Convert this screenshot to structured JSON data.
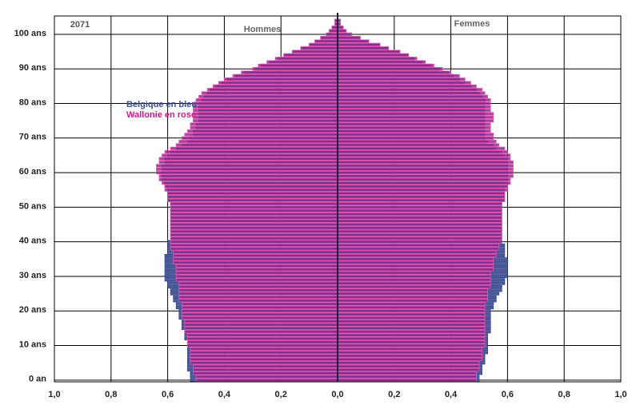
{
  "chart_data": {
    "type": "pyramid",
    "title": "2071",
    "sides": [
      "Hommes",
      "Femmes"
    ],
    "xlim": [
      -1,
      1
    ],
    "xticks": [
      {
        "value": -1,
        "label": "1,0"
      },
      {
        "value": -0.8,
        "label": "0,8"
      },
      {
        "value": -0.6,
        "label": "0,6"
      },
      {
        "value": -0.4,
        "label": "0,4"
      },
      {
        "value": -0.2,
        "label": "0,2"
      },
      {
        "value": 0,
        "label": "0,0"
      },
      {
        "value": 0.2,
        "label": "0,2"
      },
      {
        "value": 0.4,
        "label": "0,4"
      },
      {
        "value": 0.6,
        "label": "0,6"
      },
      {
        "value": 0.8,
        "label": "0,8"
      },
      {
        "value": 1,
        "label": "1,0"
      }
    ],
    "ylim": [
      -0.5,
      105.3
    ],
    "yticks": [
      {
        "value": 0,
        "label": "0 an"
      },
      {
        "value": 10,
        "label": "10 ans"
      },
      {
        "value": 20,
        "label": "20 ans"
      },
      {
        "value": 30,
        "label": "30 ans"
      },
      {
        "value": 40,
        "label": "40 ans"
      },
      {
        "value": 50,
        "label": "50 ans"
      },
      {
        "value": 60,
        "label": "60 ans"
      },
      {
        "value": 70,
        "label": "70 ans"
      },
      {
        "value": 80,
        "label": "80 ans"
      },
      {
        "value": 90,
        "label": "90 ans"
      },
      {
        "value": 100,
        "label": "100 ans"
      }
    ],
    "grid": true,
    "y": [
      0,
      1,
      2,
      3,
      4,
      5,
      6,
      7,
      8,
      9,
      10,
      11,
      12,
      13,
      14,
      15,
      16,
      17,
      18,
      19,
      20,
      21,
      22,
      23,
      24,
      25,
      26,
      27,
      28,
      29,
      30,
      31,
      32,
      33,
      34,
      35,
      36,
      37,
      38,
      39,
      40,
      41,
      42,
      43,
      44,
      45,
      46,
      47,
      48,
      49,
      50,
      51,
      52,
      53,
      54,
      55,
      56,
      57,
      58,
      59,
      60,
      61,
      62,
      63,
      64,
      65,
      66,
      67,
      68,
      69,
      70,
      71,
      72,
      73,
      74,
      75,
      76,
      77,
      78,
      79,
      80,
      81,
      82,
      83,
      84,
      85,
      86,
      87,
      88,
      89,
      90,
      91,
      92,
      93,
      94,
      95,
      96,
      97,
      98,
      99,
      100,
      101,
      102,
      103,
      104
    ],
    "series": [
      {
        "name": "Belgique en bleu",
        "color": "#3b4f96",
        "hommes": [
          -0.52,
          -0.52,
          -0.52,
          -0.53,
          -0.53,
          -0.53,
          -0.53,
          -0.53,
          -0.53,
          -0.53,
          -0.53,
          -0.53,
          -0.54,
          -0.54,
          -0.54,
          -0.55,
          -0.55,
          -0.55,
          -0.56,
          -0.56,
          -0.56,
          -0.57,
          -0.57,
          -0.58,
          -0.58,
          -0.59,
          -0.59,
          -0.6,
          -0.6,
          -0.61,
          -0.61,
          -0.61,
          -0.61,
          -0.61,
          -0.61,
          -0.61,
          -0.61,
          -0.6,
          -0.6,
          -0.6,
          -0.6,
          -0.59,
          -0.59,
          -0.59,
          -0.59,
          -0.59,
          -0.59,
          -0.59,
          -0.59,
          -0.59,
          -0.59,
          -0.59,
          -0.6,
          -0.6,
          -0.6,
          -0.6,
          -0.61,
          -0.61,
          -0.62,
          -0.62,
          -0.62,
          -0.62,
          -0.62,
          -0.61,
          -0.61,
          -0.6,
          -0.59,
          -0.57,
          -0.55,
          -0.53,
          -0.52,
          -0.51,
          -0.51,
          -0.5,
          -0.5,
          -0.49,
          -0.49,
          -0.49,
          -0.49,
          -0.49,
          -0.49,
          -0.48,
          -0.47,
          -0.46,
          -0.45,
          -0.43,
          -0.41,
          -0.39,
          -0.36,
          -0.33,
          -0.29,
          -0.27,
          -0.24,
          -0.21,
          -0.19,
          -0.16,
          -0.13,
          -0.1,
          -0.08,
          -0.06,
          -0.04,
          -0.03,
          -0.02,
          -0.01,
          -0.01
        ],
        "femmes": [
          0.5,
          0.5,
          0.51,
          0.51,
          0.51,
          0.52,
          0.52,
          0.52,
          0.53,
          0.53,
          0.53,
          0.53,
          0.53,
          0.53,
          0.54,
          0.54,
          0.54,
          0.54,
          0.54,
          0.54,
          0.54,
          0.55,
          0.55,
          0.56,
          0.56,
          0.57,
          0.58,
          0.58,
          0.59,
          0.59,
          0.6,
          0.6,
          0.6,
          0.6,
          0.6,
          0.6,
          0.59,
          0.59,
          0.59,
          0.59,
          0.58,
          0.58,
          0.58,
          0.58,
          0.58,
          0.58,
          0.58,
          0.58,
          0.58,
          0.58,
          0.58,
          0.58,
          0.59,
          0.59,
          0.59,
          0.59,
          0.6,
          0.6,
          0.6,
          0.6,
          0.6,
          0.6,
          0.6,
          0.6,
          0.6,
          0.59,
          0.58,
          0.56,
          0.55,
          0.53,
          0.52,
          0.52,
          0.52,
          0.52,
          0.52,
          0.52,
          0.52,
          0.52,
          0.52,
          0.52,
          0.52,
          0.52,
          0.51,
          0.5,
          0.49,
          0.47,
          0.45,
          0.43,
          0.41,
          0.39,
          0.36,
          0.33,
          0.3,
          0.27,
          0.25,
          0.22,
          0.18,
          0.15,
          0.11,
          0.08,
          0.05,
          0.03,
          0.02,
          0.01,
          0.01
        ]
      },
      {
        "name": "Wallonie en rose",
        "color": "#e0148c",
        "hommes": [
          -0.5,
          -0.5,
          -0.51,
          -0.51,
          -0.51,
          -0.52,
          -0.52,
          -0.52,
          -0.52,
          -0.52,
          -0.53,
          -0.53,
          -0.53,
          -0.53,
          -0.54,
          -0.54,
          -0.54,
          -0.54,
          -0.55,
          -0.55,
          -0.55,
          -0.55,
          -0.55,
          -0.56,
          -0.56,
          -0.56,
          -0.56,
          -0.56,
          -0.56,
          -0.57,
          -0.57,
          -0.57,
          -0.57,
          -0.57,
          -0.58,
          -0.58,
          -0.58,
          -0.58,
          -0.59,
          -0.59,
          -0.59,
          -0.59,
          -0.59,
          -0.59,
          -0.59,
          -0.59,
          -0.59,
          -0.59,
          -0.59,
          -0.59,
          -0.59,
          -0.59,
          -0.6,
          -0.6,
          -0.6,
          -0.61,
          -0.61,
          -0.62,
          -0.63,
          -0.63,
          -0.64,
          -0.64,
          -0.64,
          -0.63,
          -0.63,
          -0.62,
          -0.61,
          -0.59,
          -0.57,
          -0.56,
          -0.55,
          -0.54,
          -0.53,
          -0.52,
          -0.52,
          -0.51,
          -0.51,
          -0.51,
          -0.51,
          -0.51,
          -0.51,
          -0.5,
          -0.49,
          -0.48,
          -0.46,
          -0.44,
          -0.42,
          -0.4,
          -0.37,
          -0.34,
          -0.3,
          -0.28,
          -0.25,
          -0.22,
          -0.19,
          -0.16,
          -0.13,
          -0.1,
          -0.08,
          -0.06,
          -0.04,
          -0.03,
          -0.02,
          -0.01,
          -0.01
        ],
        "femmes": [
          0.49,
          0.49,
          0.49,
          0.5,
          0.5,
          0.5,
          0.51,
          0.51,
          0.51,
          0.51,
          0.52,
          0.52,
          0.52,
          0.52,
          0.52,
          0.52,
          0.52,
          0.52,
          0.52,
          0.52,
          0.52,
          0.52,
          0.52,
          0.53,
          0.53,
          0.53,
          0.53,
          0.54,
          0.54,
          0.54,
          0.54,
          0.54,
          0.55,
          0.55,
          0.55,
          0.55,
          0.56,
          0.56,
          0.57,
          0.57,
          0.58,
          0.58,
          0.58,
          0.58,
          0.58,
          0.58,
          0.58,
          0.58,
          0.58,
          0.58,
          0.58,
          0.58,
          0.59,
          0.59,
          0.59,
          0.6,
          0.6,
          0.61,
          0.61,
          0.62,
          0.62,
          0.62,
          0.62,
          0.62,
          0.61,
          0.61,
          0.6,
          0.59,
          0.57,
          0.56,
          0.55,
          0.55,
          0.54,
          0.54,
          0.54,
          0.55,
          0.55,
          0.55,
          0.54,
          0.54,
          0.54,
          0.54,
          0.53,
          0.52,
          0.51,
          0.49,
          0.47,
          0.45,
          0.43,
          0.4,
          0.37,
          0.34,
          0.31,
          0.28,
          0.25,
          0.22,
          0.18,
          0.15,
          0.11,
          0.08,
          0.05,
          0.03,
          0.02,
          0.01,
          0.01
        ]
      }
    ]
  }
}
